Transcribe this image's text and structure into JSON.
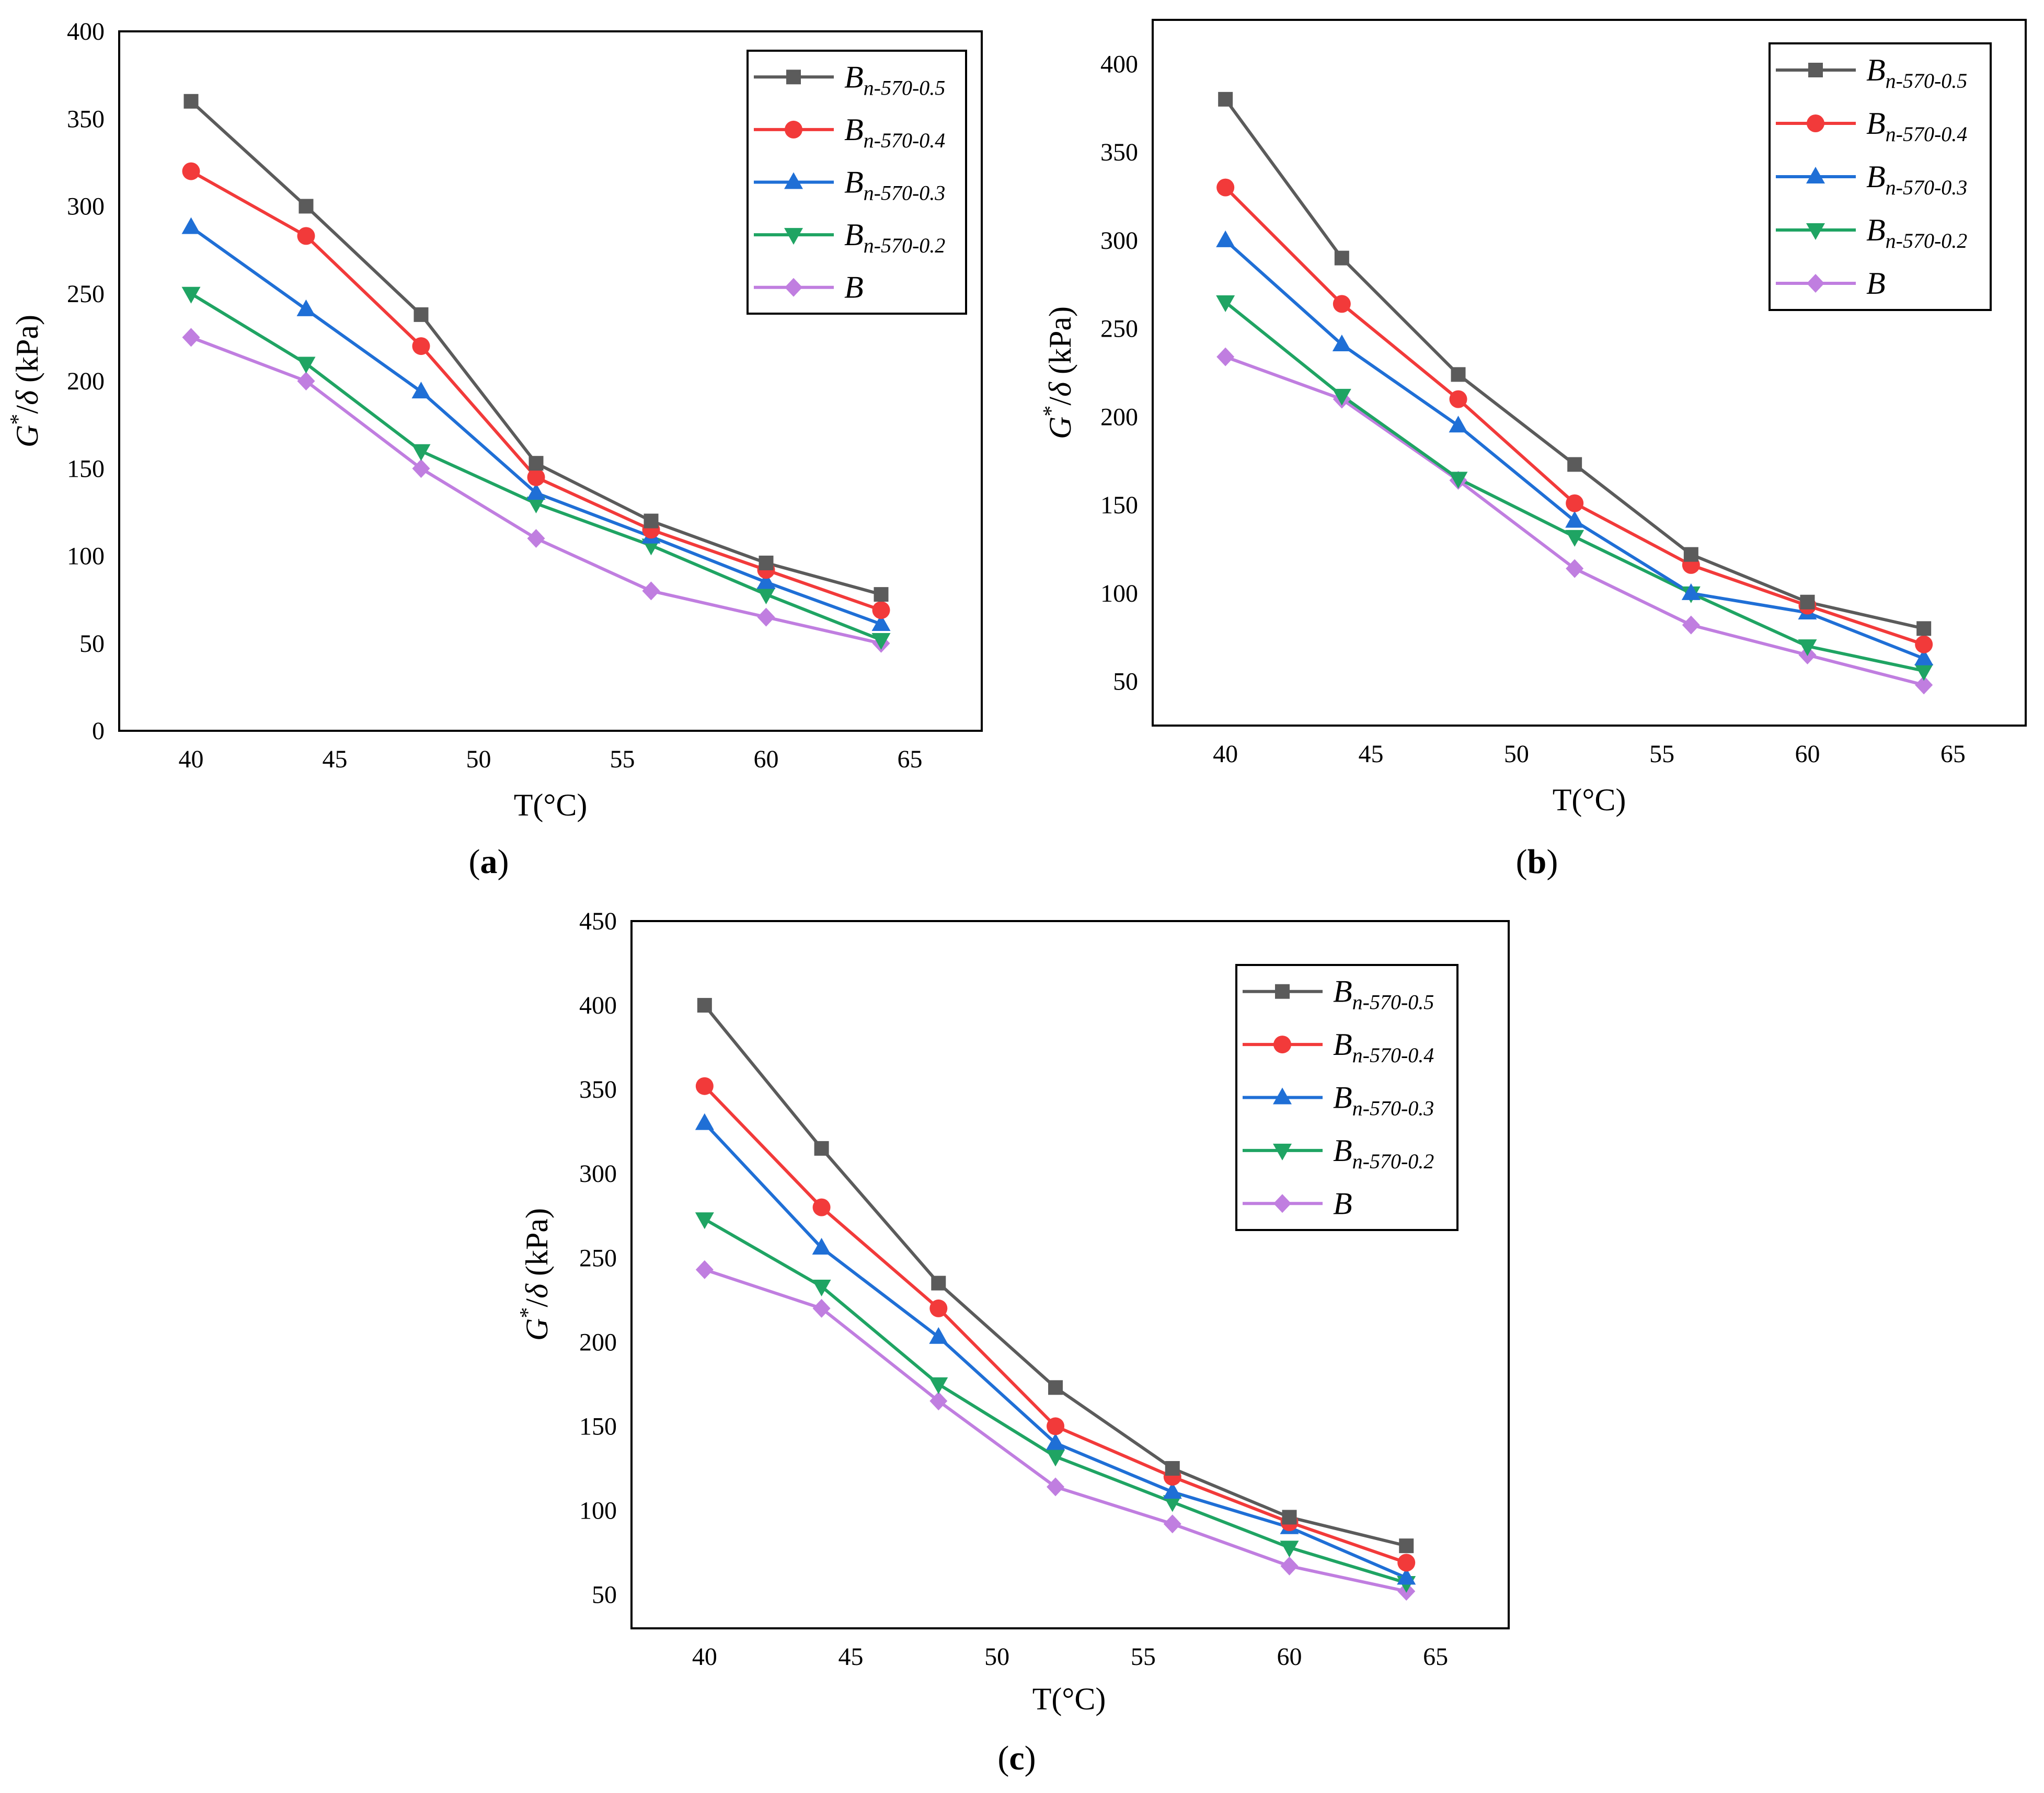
{
  "colors": {
    "B_n570_05": "#5b5b5b",
    "B_n570_04": "#f23a3a",
    "B_n570_03": "#1f6fd6",
    "B_n570_02": "#1fa463",
    "B": "#c07ee0"
  },
  "chart_data": [
    {
      "type": "line",
      "caption": "a",
      "xlabel": "T(°C)",
      "ylabel_main": "G",
      "ylabel_sup": "*",
      "ylabel_mid": "/",
      "ylabel_delta": "δ",
      "ylabel_unit": " (kPa)",
      "xlim": [
        37.5,
        67.5
      ],
      "ylim": [
        0,
        400
      ],
      "xticks": [
        40,
        45,
        50,
        55,
        60,
        65
      ],
      "yticks": [
        0,
        50,
        100,
        150,
        200,
        250,
        300,
        350,
        400
      ],
      "x": [
        40,
        44,
        48,
        52,
        56,
        60,
        64
      ],
      "legend_position": "top-right",
      "series": [
        {
          "name": "B",
          "sub": "n-570-0.5",
          "marker": "square",
          "color_key": "B_n570_05",
          "values": [
            360,
            300,
            238,
            153,
            120,
            96,
            78
          ]
        },
        {
          "name": "B",
          "sub": "n-570-0.4",
          "marker": "circle",
          "color_key": "B_n570_04",
          "values": [
            320,
            283,
            220,
            145,
            115,
            92,
            69
          ]
        },
        {
          "name": "B",
          "sub": "n-570-0.3",
          "marker": "triangle-up",
          "color_key": "B_n570_03",
          "values": [
            288,
            241,
            194,
            136,
            111,
            85,
            61
          ]
        },
        {
          "name": "B",
          "sub": "n-570-0.2",
          "marker": "triangle-down",
          "color_key": "B_n570_02",
          "values": [
            250,
            210,
            160,
            130,
            106,
            78,
            52
          ]
        },
        {
          "name": "B",
          "sub": "",
          "marker": "diamond",
          "color_key": "B",
          "values": [
            225,
            200,
            150,
            110,
            80,
            65,
            50
          ]
        }
      ]
    },
    {
      "type": "line",
      "caption": "b",
      "xlabel": "T(°C)",
      "ylabel_main": "G",
      "ylabel_sup": "*",
      "ylabel_mid": "/",
      "ylabel_delta": "δ",
      "ylabel_unit": " (kPa)",
      "xlim": [
        37.5,
        67.5
      ],
      "ylim": [
        25,
        425
      ],
      "xticks": [
        40,
        45,
        50,
        55,
        60,
        65
      ],
      "yticks": [
        50,
        100,
        150,
        200,
        250,
        300,
        350,
        400
      ],
      "x": [
        40,
        44,
        48,
        52,
        56,
        60,
        64
      ],
      "legend_position": "top-right",
      "series": [
        {
          "name": "B",
          "sub": "n-570-0.5",
          "marker": "square",
          "color_key": "B_n570_05",
          "values": [
            380,
            290,
            224,
            173,
            122,
            95,
            80
          ]
        },
        {
          "name": "B",
          "sub": "n-570-0.4",
          "marker": "circle",
          "color_key": "B_n570_04",
          "values": [
            330,
            264,
            210,
            151,
            116,
            93,
            71
          ]
        },
        {
          "name": "B",
          "sub": "n-570-0.3",
          "marker": "triangle-up",
          "color_key": "B_n570_03",
          "values": [
            300,
            241,
            195,
            141,
            100,
            89,
            63
          ]
        },
        {
          "name": "B",
          "sub": "n-570-0.2",
          "marker": "triangle-down",
          "color_key": "B_n570_02",
          "values": [
            265,
            212,
            165,
            132,
            100,
            70,
            56
          ]
        },
        {
          "name": "B",
          "sub": "",
          "marker": "diamond",
          "color_key": "B",
          "values": [
            234,
            210,
            164,
            114,
            82,
            65,
            48
          ]
        }
      ]
    },
    {
      "type": "line",
      "caption": "c",
      "xlabel": "T(°C)",
      "ylabel_main": "G",
      "ylabel_sup": "*",
      "ylabel_mid": "/",
      "ylabel_delta": "δ",
      "ylabel_unit": " (kPa)",
      "xlim": [
        37.5,
        67.5
      ],
      "ylim": [
        30,
        450
      ],
      "xticks": [
        40,
        45,
        50,
        55,
        60,
        65
      ],
      "yticks": [
        50,
        100,
        150,
        200,
        250,
        300,
        350,
        400,
        450
      ],
      "x": [
        40,
        44,
        48,
        52,
        56,
        60,
        64
      ],
      "legend_position": "top-right",
      "series": [
        {
          "name": "B",
          "sub": "n-570-0.5",
          "marker": "square",
          "color_key": "B_n570_05",
          "values": [
            400,
            315,
            235,
            173,
            125,
            96,
            79
          ]
        },
        {
          "name": "B",
          "sub": "n-570-0.4",
          "marker": "circle",
          "color_key": "B_n570_04",
          "values": [
            352,
            280,
            220,
            150,
            120,
            93,
            69
          ]
        },
        {
          "name": "B",
          "sub": "n-570-0.3",
          "marker": "triangle-up",
          "color_key": "B_n570_03",
          "values": [
            330,
            256,
            203,
            140,
            111,
            90,
            60
          ]
        },
        {
          "name": "B",
          "sub": "n-570-0.2",
          "marker": "triangle-down",
          "color_key": "B_n570_02",
          "values": [
            273,
            233,
            175,
            132,
            105,
            78,
            57
          ]
        },
        {
          "name": "B",
          "sub": "",
          "marker": "diamond",
          "color_key": "B",
          "values": [
            243,
            220,
            165,
            114,
            92,
            67,
            52
          ]
        }
      ]
    }
  ]
}
